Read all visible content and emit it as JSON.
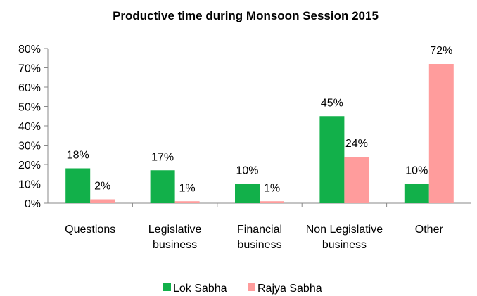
{
  "chart_data": {
    "type": "bar",
    "title": "Productive time during  Monsoon Session 2015",
    "categories": [
      "Questions",
      "Legislative\nbusiness",
      "Financial\nbusiness",
      "Non Legislative\nbusiness",
      "Other"
    ],
    "series": [
      {
        "name": "Lok Sabha",
        "color": "#12b04a",
        "values": [
          18,
          17,
          10,
          45,
          10
        ],
        "value_labels": [
          "18%",
          "17%",
          "10%",
          "45%",
          "10%"
        ]
      },
      {
        "name": "Rajya Sabha",
        "color": "#ff9c9c",
        "values": [
          2,
          1,
          1,
          24,
          72
        ],
        "value_labels": [
          "2%",
          "1%",
          "1%",
          "24%",
          "72%"
        ]
      }
    ],
    "ylim": [
      0,
      80
    ],
    "yticks": [
      {
        "value": 0,
        "label": "0%"
      },
      {
        "value": 10,
        "label": "10%"
      },
      {
        "value": 20,
        "label": "20%"
      },
      {
        "value": 30,
        "label": "30%"
      },
      {
        "value": 40,
        "label": "40%"
      },
      {
        "value": 50,
        "label": "50%"
      },
      {
        "value": 60,
        "label": "60%"
      },
      {
        "value": 70,
        "label": "70%"
      },
      {
        "value": 80,
        "label": "80%"
      }
    ],
    "grid": false,
    "legend": "bottom"
  }
}
